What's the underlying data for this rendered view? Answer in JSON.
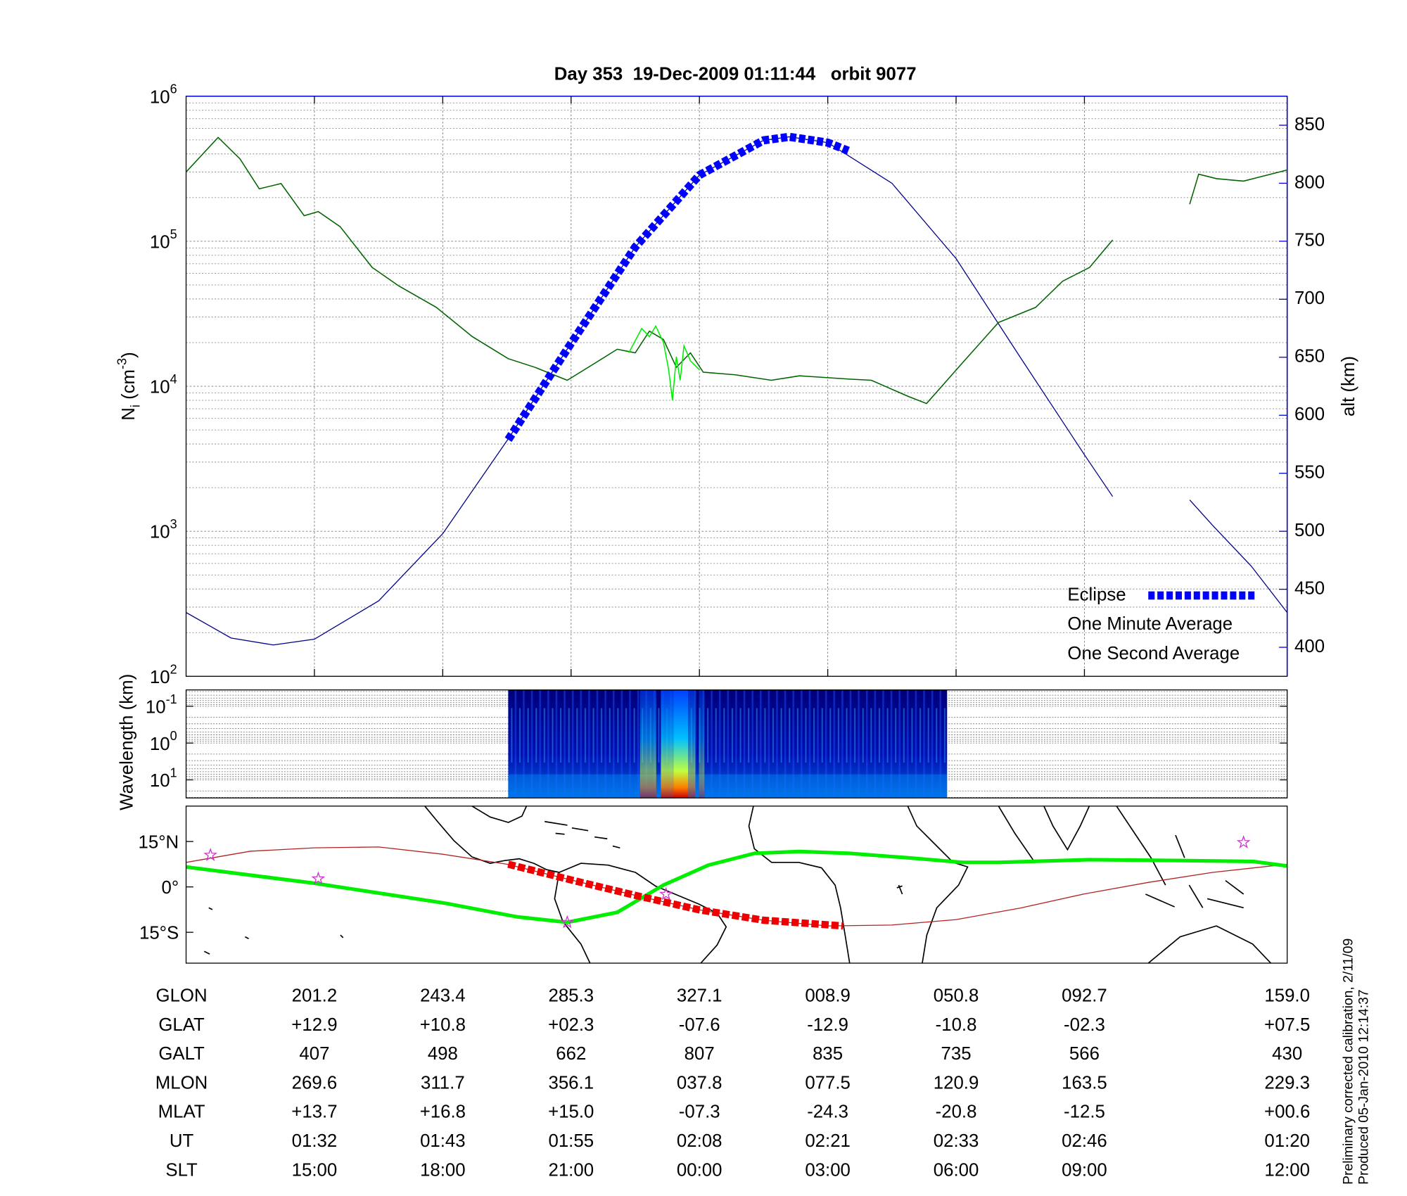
{
  "chart_data": [
    {
      "type": "line",
      "title": "Day 353  19-Dec-2009 01:11:44   orbit 9077",
      "ylabel": [
        "N",
        "i",
        " (cm",
        "-3",
        ")"
      ],
      "y2label": "alt (km)",
      "log": true,
      "grid": true,
      "minor_grid": true,
      "legend": "lower right",
      "xlim": [
        0,
        8.58
      ],
      "xticks": [
        1,
        2,
        3,
        4,
        5,
        6,
        7
      ],
      "ylim": [
        100,
        1000000
      ],
      "yticks": [
        {
          "value": 100,
          "label": "10",
          "sup": "2"
        },
        {
          "value": 1000,
          "label": "10",
          "sup": "3"
        },
        {
          "value": 10000,
          "label": "10",
          "sup": "4"
        },
        {
          "value": 100000,
          "label": "10",
          "sup": "5"
        },
        {
          "value": 1000000,
          "label": "10",
          "sup": "6"
        }
      ],
      "y2lim": [
        375,
        875
      ],
      "y2ticks": [
        400,
        450,
        500,
        550,
        600,
        650,
        700,
        750,
        800,
        850
      ],
      "y2color": "#0000cc",
      "series": [
        {
          "name": "Eclipse",
          "color": "#0000ff",
          "axis": "y2",
          "dashed": true,
          "width": 9,
          "x": [
            2.51,
            3,
            3.5,
            4,
            4.5,
            4.7,
            5,
            5.16
          ],
          "values": [
            579,
            662,
            745,
            807,
            837,
            840,
            835,
            828
          ]
        },
        {
          "name": "One Minute Average",
          "color": "#006400",
          "label_color": "#000000",
          "width": 1.2,
          "x": [
            0,
            0.25,
            0.42,
            0.57,
            0.74,
            0.92,
            1.03,
            1.2,
            1.45,
            1.66,
            1.95,
            2.23,
            2.51,
            2.72,
            2.97,
            3.19,
            3.36,
            3.5,
            3.61,
            3.72,
            3.82,
            3.93,
            4.03,
            4.28,
            4.56,
            4.78,
            5.17,
            5.34,
            5.63,
            5.77,
            6.05,
            6.33,
            6.62,
            6.83,
            7.04,
            7.22,
            7.5,
            7.82,
            7.89,
            8.03,
            8.24,
            8.58
          ],
          "values": [
            300000,
            520000,
            370000,
            230000,
            250000,
            150000,
            160000,
            126000,
            66000,
            49000,
            35000,
            22000,
            15500,
            13500,
            11000,
            14500,
            18000,
            17000,
            24000,
            21000,
            13500,
            17000,
            12500,
            12000,
            11000,
            11800,
            11200,
            11000,
            8500,
            7600,
            14500,
            27500,
            35000,
            53000,
            66000,
            102000,
            null,
            180000,
            290000,
            270000,
            260000,
            310000
          ]
        },
        {
          "name": "One Second Average",
          "color": "#00ee00",
          "width": 1.2,
          "x": [
            3.45,
            3.55,
            3.61,
            3.66,
            3.72,
            3.76,
            3.79,
            3.82,
            3.85,
            3.88,
            3.93,
            4.0
          ],
          "values": [
            17000,
            25000,
            22000,
            26000,
            20000,
            13000,
            8000,
            16000,
            11000,
            19000,
            15000,
            13000
          ]
        },
        {
          "color": "#00008b",
          "axis": "y2",
          "width": 1,
          "x": [
            0,
            0.35,
            0.68,
            1,
            1.5,
            2,
            2.5,
            3,
            3.5,
            4,
            4.5,
            4.7,
            5,
            5.5,
            6,
            6.5,
            7,
            7.22,
            7.5,
            7.82,
            8,
            8.3,
            8.58
          ],
          "values": [
            430,
            408,
            402,
            407,
            440,
            498,
            578,
            662,
            745,
            807,
            837,
            840,
            835,
            800,
            735,
            650,
            566,
            530,
            null,
            527,
            505,
            470,
            430
          ]
        }
      ]
    },
    {
      "type": "spectrogram",
      "ylabel": "Wavelength (km)",
      "log": true,
      "inverted": true,
      "minor_grid": true,
      "xlim": [
        0,
        8.58
      ],
      "ylim": [
        0.036,
        31
      ],
      "yticks": [
        {
          "value": 0.1,
          "label": "10",
          "sup": "-1"
        },
        {
          "value": 1,
          "label": "10",
          "sup": "0"
        },
        {
          "value": 10,
          "label": "10",
          "sup": "1"
        }
      ],
      "data_xlim": [
        2.51,
        5.93
      ]
    },
    {
      "type": "map",
      "xlim": [
        0,
        8.58
      ],
      "ylim": [
        -25.2,
        26.7
      ],
      "yticks": [
        {
          "value": 15,
          "label": "15°N"
        },
        {
          "value": 0,
          "label": "0°"
        },
        {
          "value": -15,
          "label": "15°S"
        }
      ],
      "series": [
        {
          "color": "#b22222",
          "width": 1,
          "x": [
            0,
            0.5,
            1,
            1.5,
            2,
            2.5,
            3,
            3.5,
            4,
            4.5,
            5,
            5.5,
            6,
            6.5,
            7,
            7.5,
            8,
            8.58
          ],
          "values": [
            8.1,
            11.8,
            12.9,
            13.2,
            10.8,
            7.5,
            2.3,
            -2.8,
            -7.6,
            -11,
            -12.9,
            -12.6,
            -10.8,
            -7,
            -2.3,
            1.5,
            4.8,
            7.5
          ]
        },
        {
          "color": "#00ee00",
          "width": 4,
          "x": [
            0,
            1,
            2.02,
            2.58,
            2.97,
            3.36,
            3.72,
            4.07,
            4.43,
            4.78,
            5.17,
            5.63,
            6.05,
            6.33,
            7.04,
            7.75,
            8.32,
            8.58
          ],
          "values": [
            6.6,
            1.2,
            -5.4,
            -9.9,
            -11.7,
            -8.4,
            0.6,
            7.2,
            11.1,
            11.7,
            11.1,
            9.6,
            8.1,
            8.1,
            9,
            8.7,
            8.4,
            6.9
          ]
        },
        {
          "color": "#ee0000",
          "width": 8,
          "dashed": true,
          "x": [
            2.51,
            3,
            3.5,
            4,
            4.5,
            5.12
          ],
          "values": [
            7.5,
            2.3,
            -2.8,
            -7.6,
            -11,
            -12.9
          ]
        },
        {
          "type": "scatter",
          "color": "#cc33cc",
          "x": [
            0.19,
            1.03,
            2.97,
            3.74,
            8.24
          ],
          "values": [
            10.5,
            2.7,
            -11.7,
            -2.4,
            14.7
          ]
        }
      ]
    }
  ],
  "table": {
    "rows": [
      {
        "label": "GLON",
        "cells": [
          "201.2",
          "243.4",
          "285.3",
          "327.1",
          "008.9",
          "050.8",
          "092.7",
          "159.0"
        ]
      },
      {
        "label": "GLAT",
        "cells": [
          "+12.9",
          "+10.8",
          "+02.3",
          "-07.6",
          "-12.9",
          "-10.8",
          "-02.3",
          "+07.5"
        ]
      },
      {
        "label": "GALT",
        "cells": [
          "407",
          "498",
          "662",
          "807",
          "835",
          "735",
          "566",
          "430"
        ]
      },
      {
        "label": "MLON",
        "cells": [
          "269.6",
          "311.7",
          "356.1",
          "037.8",
          "077.5",
          "120.9",
          "163.5",
          "229.3"
        ]
      },
      {
        "label": "MLAT",
        "cells": [
          "+13.7",
          "+16.8",
          "+15.0",
          "-07.3",
          "-24.3",
          "-20.8",
          "-12.5",
          "+00.6"
        ]
      },
      {
        "label": "UT",
        "cells": [
          "01:32",
          "01:43",
          "01:55",
          "02:08",
          "02:21",
          "02:33",
          "02:46",
          "01:20"
        ]
      },
      {
        "label": "SLT",
        "cells": [
          "15:00",
          "18:00",
          "21:00",
          "00:00",
          "03:00",
          "06:00",
          "09:00",
          "12:00"
        ]
      }
    ]
  },
  "notes": [
    "Preliminary corrected calibration, 2/11/09",
    "Produced 05-Jan-2010 12:14:37"
  ]
}
